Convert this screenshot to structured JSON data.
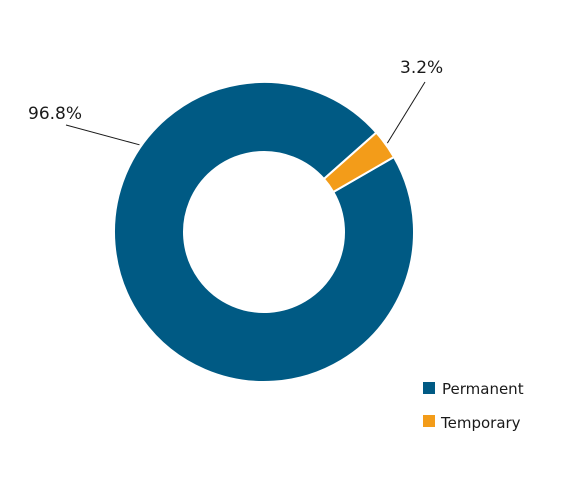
{
  "chart_data": {
    "type": "pie",
    "variant": "donut",
    "slices": [
      {
        "name": "Permanent",
        "value": 96.8,
        "label": "96.8%",
        "color": "#005a84"
      },
      {
        "name": "Temporary",
        "value": 3.2,
        "label": "3.2%",
        "color": "#f39c19"
      }
    ],
    "legend_placement": "bottom-right",
    "title": ""
  }
}
